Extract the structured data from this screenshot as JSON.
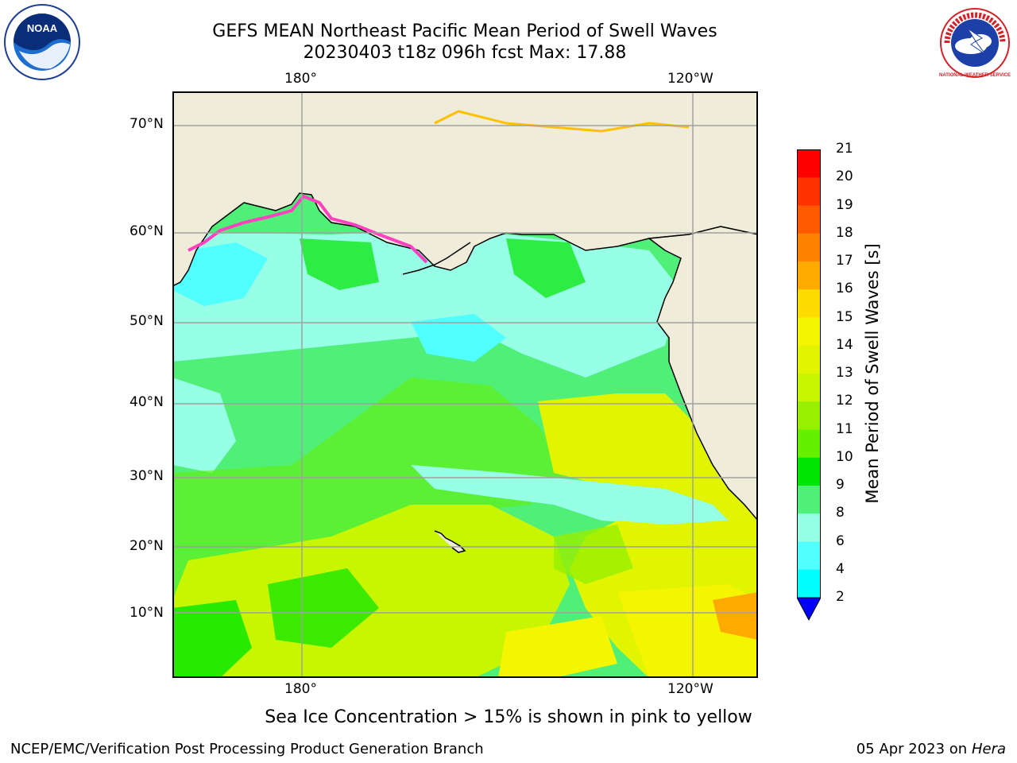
{
  "title": {
    "line1": "GEFS MEAN Northeast Pacific Mean Period of Swell Waves",
    "line2": "20230403 t18z 096h fcst   Max: 17.88"
  },
  "logos": {
    "left": {
      "text": "NOAA",
      "icon": "noaa-logo"
    },
    "right": {
      "text": "NATIONAL WEATHER SERVICE",
      "icon": "nws-logo"
    }
  },
  "map": {
    "top_lon_labels": [
      "180°",
      "120°W"
    ],
    "bottom_lon_labels": [
      "180°",
      "120°W"
    ],
    "lat_labels": [
      "70°N",
      "60°N",
      "50°N",
      "40°N",
      "30°N",
      "20°N",
      "10°N"
    ],
    "land_color": "#efecd9",
    "coast_color": "#000000",
    "grid_color": "#a0a0a0"
  },
  "colorbar": {
    "title": "Mean Period of Swell Waves [s]",
    "labels": [
      "21",
      "20",
      "19",
      "18",
      "17",
      "16",
      "15",
      "14",
      "13",
      "12",
      "11",
      "10",
      "9",
      "8",
      "6",
      "4",
      "2"
    ],
    "colors": [
      "#ff0000",
      "#ff3200",
      "#ff5a00",
      "#ff8200",
      "#ffaa00",
      "#ffdc00",
      "#f5f500",
      "#e1f500",
      "#c8f500",
      "#96f000",
      "#64f000",
      "#00e600",
      "#50f078",
      "#96ffe6",
      "#50ffff",
      "#00ffff",
      "#00c8ff",
      "#0078ff"
    ],
    "extend_color": "#0000ff"
  },
  "footnote": "Sea Ice Concentration > 15% is shown in pink to yellow",
  "credit": {
    "left": "NCEP/EMC/Verification Post Processing Product Generation Branch",
    "right_date": "05 Apr 2023 on",
    "right_machine": "Hera"
  }
}
